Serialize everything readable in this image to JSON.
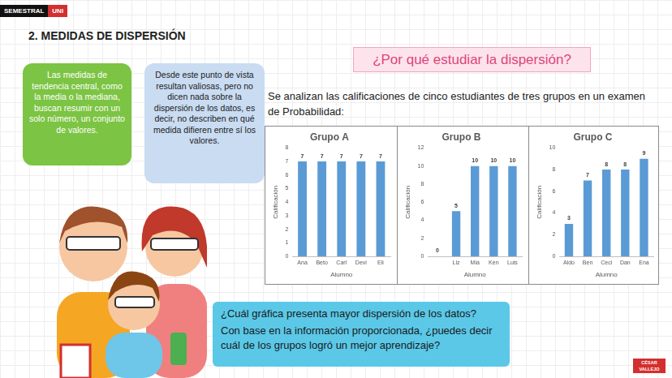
{
  "header": {
    "badge": [
      "SEMESTRAL",
      "UNI"
    ],
    "title": "2. MEDIDAS DE DISPERSIÓN"
  },
  "bubbles": [
    "Las medidas de tendencia central, como la media o la mediana, buscan resumir con un solo número, un conjunto de valores.",
    "Desde este punto de vista resultan valiosas, pero no dicen nada sobre la dispersión de los datos, es decir, no describen en qué medida difieren entre sí los valores."
  ],
  "banner": "¿Por qué estudiar la dispersión?",
  "intro": "Se analizan las calificaciones de cinco estudiantes de tres grupos en un examen de Probabilidad:",
  "questions": [
    "¿Cuál gráfica presenta mayor dispersión de los datos?",
    "Con base en la información proporcionada, ¿puedes decir cuál de los grupos logró un mejor aprendizaje?"
  ],
  "logo": "CÉSAR VALLEJO",
  "chart_data": [
    {
      "type": "bar",
      "title": "Grupo A",
      "x_label": "Alumno",
      "y_label": "Calificación",
      "categories": [
        "Ana",
        "Beto",
        "Carl",
        "Devi",
        "Eli"
      ],
      "values": [
        7,
        7,
        7,
        7,
        7
      ],
      "color": "#5b9bd5",
      "ylim": [
        0,
        8
      ],
      "yticks": [
        0,
        1,
        2,
        3,
        4,
        5,
        6,
        7,
        8
      ],
      "grid": false,
      "data_labels": true
    },
    {
      "type": "bar",
      "title": "Grupo B",
      "x_label": "Alumno",
      "y_label": "Calificación",
      "categories": [
        null,
        "Liz",
        "Mia",
        "Ken",
        "Luis"
      ],
      "values": [
        0,
        5,
        10,
        10,
        10
      ],
      "color": "#5b9bd5",
      "ylim": [
        0,
        12
      ],
      "yticks": [
        0,
        2,
        4,
        6,
        8,
        10,
        12
      ],
      "grid": false,
      "data_labels": true
    },
    {
      "type": "bar",
      "title": "Grupo C",
      "x_label": "Alumno",
      "y_label": "Calificación",
      "categories": [
        "Aldo",
        "Ben",
        "Ceci",
        "Dan",
        "Ena"
      ],
      "values": [
        3,
        7,
        8,
        8,
        9
      ],
      "color": "#5b9bd5",
      "ylim": [
        0,
        10
      ],
      "yticks": [
        0,
        2,
        4,
        6,
        8,
        10
      ],
      "grid": false,
      "data_labels": true
    }
  ]
}
